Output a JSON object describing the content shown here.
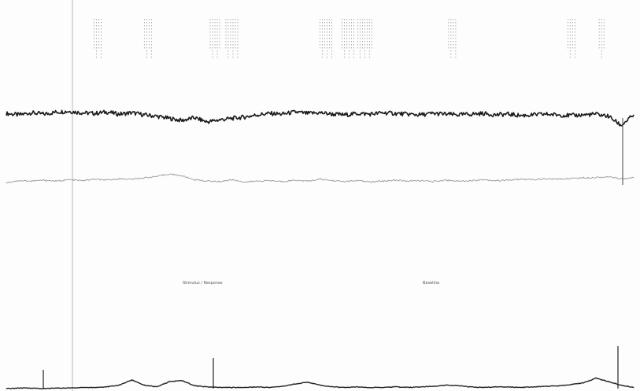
{
  "chart_data": {
    "type": "line",
    "title": "",
    "xlabel": "",
    "ylabel": "",
    "grid": false,
    "legend": "none",
    "captions": [
      "Stimulus / Response",
      "Baseline"
    ],
    "annotation_columns": [
      {
        "x": 0.14,
        "lines": 4
      },
      {
        "x": 0.22,
        "lines": 4
      },
      {
        "x": 0.325,
        "lines": 5
      },
      {
        "x": 0.35,
        "lines": 6
      },
      {
        "x": 0.5,
        "lines": 6
      },
      {
        "x": 0.535,
        "lines": 6
      },
      {
        "x": 0.56,
        "lines": 7
      },
      {
        "x": 0.705,
        "lines": 4
      },
      {
        "x": 0.895,
        "lines": 4
      },
      {
        "x": 0.945,
        "lines": 3
      }
    ],
    "x": [
      0,
      0.02,
      0.04,
      0.06,
      0.08,
      0.1,
      0.12,
      0.14,
      0.16,
      0.18,
      0.2,
      0.22,
      0.24,
      0.26,
      0.28,
      0.3,
      0.32,
      0.34,
      0.36,
      0.38,
      0.4,
      0.42,
      0.44,
      0.46,
      0.48,
      0.5,
      0.52,
      0.54,
      0.56,
      0.58,
      0.6,
      0.62,
      0.64,
      0.66,
      0.68,
      0.7,
      0.72,
      0.74,
      0.76,
      0.78,
      0.8,
      0.82,
      0.84,
      0.86,
      0.88,
      0.9,
      0.92,
      0.94,
      0.96,
      0.98,
      1.0
    ],
    "series": [
      {
        "color": "#1a1a1a",
        "values": [
          0.62,
          0.6,
          0.63,
          0.61,
          0.64,
          0.65,
          0.63,
          0.62,
          0.64,
          0.61,
          0.63,
          0.6,
          0.58,
          0.55,
          0.52,
          0.56,
          0.5,
          0.53,
          0.55,
          0.57,
          0.6,
          0.62,
          0.61,
          0.64,
          0.62,
          0.63,
          0.61,
          0.6,
          0.62,
          0.61,
          0.63,
          0.62,
          0.61,
          0.6,
          0.62,
          0.61,
          0.6,
          0.61,
          0.62,
          0.6,
          0.61,
          0.59,
          0.6,
          0.61,
          0.6,
          0.59,
          0.6,
          0.61,
          0.58,
          0.45,
          0.6
        ]
      },
      {
        "color": "#9b9b9b",
        "values": [
          0.3,
          0.34,
          0.33,
          0.35,
          0.33,
          0.36,
          0.34,
          0.37,
          0.35,
          0.38,
          0.37,
          0.4,
          0.43,
          0.48,
          0.44,
          0.36,
          0.33,
          0.32,
          0.36,
          0.31,
          0.33,
          0.34,
          0.32,
          0.35,
          0.33,
          0.37,
          0.34,
          0.32,
          0.34,
          0.31,
          0.33,
          0.35,
          0.33,
          0.34,
          0.32,
          0.35,
          0.33,
          0.34,
          0.36,
          0.34,
          0.35,
          0.37,
          0.36,
          0.38,
          0.37,
          0.39,
          0.4,
          0.41,
          0.42,
          0.38,
          0.4
        ]
      },
      {
        "color": "#222222",
        "values": [
          0.0,
          0.01,
          0.01,
          0.0,
          0.01,
          0.01,
          0.02,
          0.02,
          0.03,
          0.06,
          0.15,
          0.06,
          0.03,
          0.12,
          0.14,
          0.05,
          0.03,
          0.02,
          0.02,
          0.02,
          0.03,
          0.02,
          0.04,
          0.08,
          0.11,
          0.06,
          0.03,
          0.02,
          0.03,
          0.02,
          0.02,
          0.03,
          0.02,
          0.03,
          0.04,
          0.06,
          0.05,
          0.03,
          0.02,
          0.03,
          0.03,
          0.02,
          0.03,
          0.04,
          0.05,
          0.07,
          0.1,
          0.18,
          0.12,
          0.06,
          0.02
        ]
      }
    ]
  }
}
